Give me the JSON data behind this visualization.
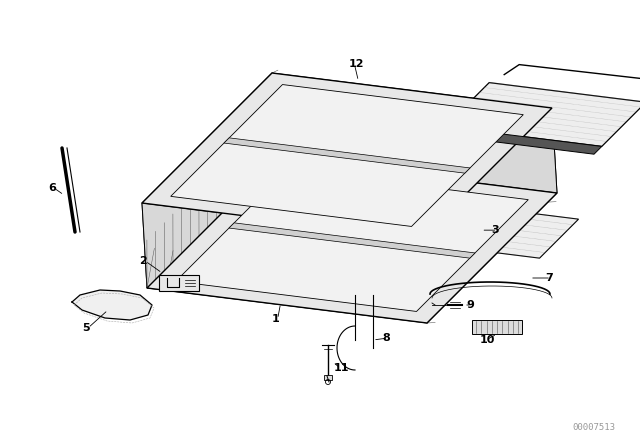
{
  "bg_color": "#ffffff",
  "line_color": "#000000",
  "watermark_color": "#999999",
  "watermark_text": "00007513",
  "figure_width": 6.4,
  "figure_height": 4.48,
  "dpi": 100
}
